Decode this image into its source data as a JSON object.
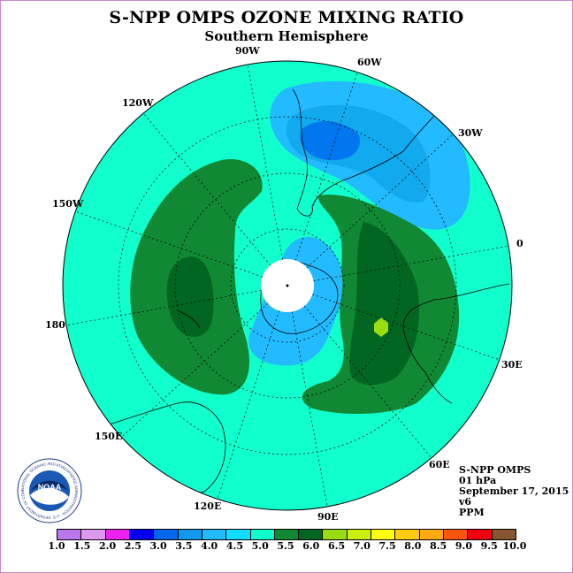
{
  "header": {
    "title": "S-NPP OMPS OZONE MIXING RATIO",
    "subtitle": "Southern Hemisphere"
  },
  "longitude_labels": {
    "lon_90w": "90W",
    "lon_60w": "60W",
    "lon_30w": "30W",
    "lon_120w": "120W",
    "lon_150w": "150W",
    "lon_0": "0",
    "lon_180": "180",
    "lon_30e": "30E",
    "lon_60e": "60E",
    "lon_90e": "90E",
    "lon_120e": "120E",
    "lon_150e": "150E"
  },
  "info": {
    "instrument": "S-NPP OMPS",
    "level": "01 hPa",
    "date": "September 17, 2015",
    "version": "v6",
    "units": "PPM"
  },
  "logo": {
    "text": "NOAA",
    "ring_text": "NATIONAL OCEANIC AND ATMOSPHERIC ADMINISTRATION · U.S. DEPARTMENT OF COMMERCE"
  },
  "colorbar": {
    "ticks": [
      "1.0",
      "1.5",
      "2.0",
      "2.5",
      "3.0",
      "3.5",
      "4.0",
      "4.5",
      "5.0",
      "5.5",
      "6.0",
      "6.5",
      "7.0",
      "7.5",
      "8.0",
      "8.5",
      "9.0",
      "9.5",
      "10.0"
    ],
    "colors": [
      "#bb77ee",
      "#dd99ee",
      "#ee22ee",
      "#0000ee",
      "#0066ee",
      "#1199ee",
      "#22bbff",
      "#11ddff",
      "#11ffcc",
      "#118833",
      "#006622",
      "#99dd11",
      "#ccee11",
      "#ffff11",
      "#ffcc11",
      "#ffaa11",
      "#ff5511",
      "#ee0011",
      "#885533"
    ]
  },
  "map_colors": {
    "background": "#11ffcc",
    "band_5_5": "#118833",
    "band_6_0": "#006622",
    "band_6_5": "#99dd11",
    "band_4_5": "#22bbff",
    "band_4_0": "#11aaee",
    "band_3_5": "#0077ee",
    "polar_night": "#ffffff"
  }
}
